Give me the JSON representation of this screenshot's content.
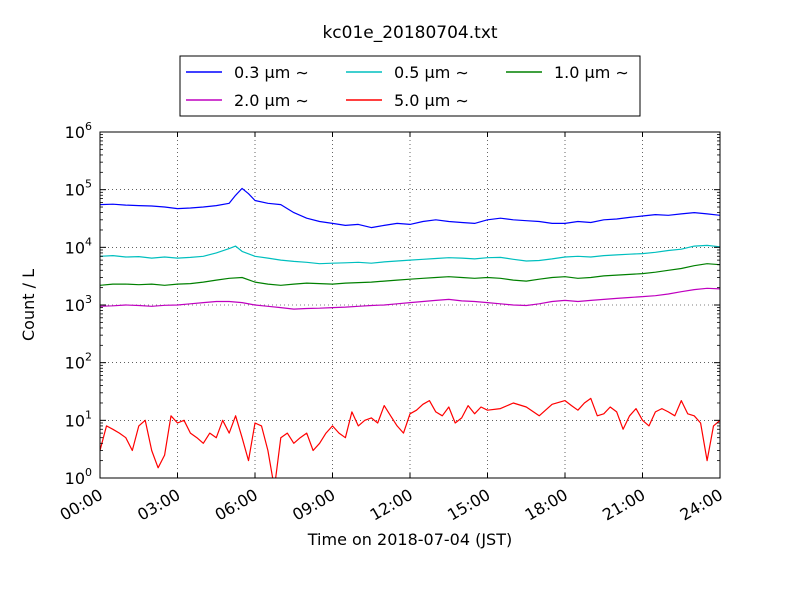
{
  "chart_data": {
    "type": "line",
    "title": "kc01e_20180704.txt",
    "xlabel": "Time on 2018-07-04 (JST)",
    "ylabel": "Count / L",
    "yscale": "log",
    "ylim": [
      1,
      1000000
    ],
    "xlim": [
      "00:00",
      "24:00"
    ],
    "grid": true,
    "legend_position": "top-center, above plot",
    "legend_symbol": "∼",
    "x_ticks": [
      "00:00",
      "03:00",
      "06:00",
      "09:00",
      "12:00",
      "15:00",
      "18:00",
      "21:00",
      "24:00"
    ],
    "y_ticks": [
      {
        "value": 1,
        "base": "10",
        "exp": "0"
      },
      {
        "value": 10,
        "base": "10",
        "exp": "1"
      },
      {
        "value": 100,
        "base": "10",
        "exp": "2"
      },
      {
        "value": 1000,
        "base": "10",
        "exp": "3"
      },
      {
        "value": 10000,
        "base": "10",
        "exp": "4"
      },
      {
        "value": 100000,
        "base": "10",
        "exp": "5"
      },
      {
        "value": 1000000,
        "base": "10",
        "exp": "6"
      }
    ],
    "series": [
      {
        "name": "0.3 μm",
        "color": "#0000ff",
        "points": [
          [
            "00:00",
            55000
          ],
          [
            "00:30",
            56000
          ],
          [
            "01:00",
            54000
          ],
          [
            "01:30",
            53000
          ],
          [
            "02:00",
            52000
          ],
          [
            "02:30",
            50000
          ],
          [
            "03:00",
            47000
          ],
          [
            "03:30",
            48000
          ],
          [
            "04:00",
            50000
          ],
          [
            "04:30",
            53000
          ],
          [
            "05:00",
            58000
          ],
          [
            "05:15",
            80000
          ],
          [
            "05:30",
            105000
          ],
          [
            "05:45",
            85000
          ],
          [
            "06:00",
            65000
          ],
          [
            "06:30",
            58000
          ],
          [
            "07:00",
            55000
          ],
          [
            "07:30",
            40000
          ],
          [
            "08:00",
            32000
          ],
          [
            "08:30",
            28000
          ],
          [
            "09:00",
            26000
          ],
          [
            "09:30",
            24000
          ],
          [
            "10:00",
            25000
          ],
          [
            "10:30",
            22000
          ],
          [
            "11:00",
            24000
          ],
          [
            "11:30",
            26000
          ],
          [
            "12:00",
            25000
          ],
          [
            "12:30",
            28000
          ],
          [
            "13:00",
            30000
          ],
          [
            "13:30",
            28000
          ],
          [
            "14:00",
            27000
          ],
          [
            "14:30",
            26000
          ],
          [
            "15:00",
            30000
          ],
          [
            "15:30",
            32000
          ],
          [
            "16:00",
            30000
          ],
          [
            "16:30",
            29000
          ],
          [
            "17:00",
            28000
          ],
          [
            "17:30",
            26000
          ],
          [
            "18:00",
            26000
          ],
          [
            "18:30",
            28000
          ],
          [
            "19:00",
            27000
          ],
          [
            "19:30",
            30000
          ],
          [
            "20:00",
            31000
          ],
          [
            "20:30",
            33000
          ],
          [
            "21:00",
            35000
          ],
          [
            "21:30",
            37000
          ],
          [
            "22:00",
            36000
          ],
          [
            "22:30",
            38000
          ],
          [
            "23:00",
            40000
          ],
          [
            "23:30",
            38000
          ],
          [
            "24:00",
            36000
          ]
        ]
      },
      {
        "name": "0.5 μm",
        "color": "#00bfbf",
        "points": [
          [
            "00:00",
            7000
          ],
          [
            "00:30",
            7200
          ],
          [
            "01:00",
            6800
          ],
          [
            "01:30",
            6900
          ],
          [
            "02:00",
            6500
          ],
          [
            "02:30",
            6800
          ],
          [
            "03:00",
            6500
          ],
          [
            "03:30",
            6700
          ],
          [
            "04:00",
            7000
          ],
          [
            "04:30",
            8000
          ],
          [
            "05:00",
            9500
          ],
          [
            "05:15",
            10500
          ],
          [
            "05:30",
            8500
          ],
          [
            "06:00",
            7000
          ],
          [
            "06:30",
            6500
          ],
          [
            "07:00",
            6000
          ],
          [
            "07:30",
            5700
          ],
          [
            "08:00",
            5500
          ],
          [
            "08:30",
            5200
          ],
          [
            "09:00",
            5300
          ],
          [
            "09:30",
            5400
          ],
          [
            "10:00",
            5500
          ],
          [
            "10:30",
            5300
          ],
          [
            "11:00",
            5600
          ],
          [
            "11:30",
            5800
          ],
          [
            "12:00",
            6000
          ],
          [
            "12:30",
            6200
          ],
          [
            "13:00",
            6400
          ],
          [
            "13:30",
            6600
          ],
          [
            "14:00",
            6500
          ],
          [
            "14:30",
            6300
          ],
          [
            "15:00",
            6600
          ],
          [
            "15:30",
            6700
          ],
          [
            "16:00",
            6200
          ],
          [
            "16:30",
            5800
          ],
          [
            "17:00",
            5900
          ],
          [
            "17:30",
            6300
          ],
          [
            "18:00",
            6800
          ],
          [
            "18:30",
            7000
          ],
          [
            "19:00",
            6800
          ],
          [
            "19:30",
            7200
          ],
          [
            "20:00",
            7400
          ],
          [
            "20:30",
            7600
          ],
          [
            "21:00",
            7800
          ],
          [
            "21:30",
            8200
          ],
          [
            "22:00",
            8800
          ],
          [
            "22:30",
            9300
          ],
          [
            "23:00",
            10500
          ],
          [
            "23:30",
            10800
          ],
          [
            "24:00",
            10200
          ]
        ]
      },
      {
        "name": "1.0 μm",
        "color": "#008000",
        "points": [
          [
            "00:00",
            2200
          ],
          [
            "00:30",
            2300
          ],
          [
            "01:00",
            2300
          ],
          [
            "01:30",
            2250
          ],
          [
            "02:00",
            2300
          ],
          [
            "02:30",
            2200
          ],
          [
            "03:00",
            2300
          ],
          [
            "03:30",
            2350
          ],
          [
            "04:00",
            2500
          ],
          [
            "04:30",
            2700
          ],
          [
            "05:00",
            2900
          ],
          [
            "05:30",
            3000
          ],
          [
            "06:00",
            2500
          ],
          [
            "06:30",
            2300
          ],
          [
            "07:00",
            2200
          ],
          [
            "07:30",
            2300
          ],
          [
            "08:00",
            2400
          ],
          [
            "08:30",
            2350
          ],
          [
            "09:00",
            2300
          ],
          [
            "09:30",
            2400
          ],
          [
            "10:00",
            2450
          ],
          [
            "10:30",
            2500
          ],
          [
            "11:00",
            2600
          ],
          [
            "11:30",
            2700
          ],
          [
            "12:00",
            2800
          ],
          [
            "12:30",
            2900
          ],
          [
            "13:00",
            3000
          ],
          [
            "13:30",
            3100
          ],
          [
            "14:00",
            3000
          ],
          [
            "14:30",
            2900
          ],
          [
            "15:00",
            3000
          ],
          [
            "15:30",
            2900
          ],
          [
            "16:00",
            2700
          ],
          [
            "16:30",
            2600
          ],
          [
            "17:00",
            2800
          ],
          [
            "17:30",
            3000
          ],
          [
            "18:00",
            3100
          ],
          [
            "18:30",
            2900
          ],
          [
            "19:00",
            3000
          ],
          [
            "19:30",
            3200
          ],
          [
            "20:00",
            3300
          ],
          [
            "20:30",
            3400
          ],
          [
            "21:00",
            3500
          ],
          [
            "21:30",
            3700
          ],
          [
            "22:00",
            4000
          ],
          [
            "22:30",
            4300
          ],
          [
            "23:00",
            4800
          ],
          [
            "23:30",
            5200
          ],
          [
            "24:00",
            5000
          ]
        ]
      },
      {
        "name": "2.0 μm",
        "color": "#bf00bf",
        "points": [
          [
            "00:00",
            950
          ],
          [
            "00:30",
            970
          ],
          [
            "01:00",
            1000
          ],
          [
            "01:30",
            980
          ],
          [
            "02:00",
            950
          ],
          [
            "02:30",
            990
          ],
          [
            "03:00",
            1000
          ],
          [
            "03:30",
            1050
          ],
          [
            "04:00",
            1100
          ],
          [
            "04:30",
            1150
          ],
          [
            "05:00",
            1150
          ],
          [
            "05:30",
            1100
          ],
          [
            "06:00",
            1000
          ],
          [
            "06:30",
            950
          ],
          [
            "07:00",
            900
          ],
          [
            "07:30",
            850
          ],
          [
            "08:00",
            870
          ],
          [
            "08:30",
            880
          ],
          [
            "09:00",
            900
          ],
          [
            "09:30",
            920
          ],
          [
            "10:00",
            950
          ],
          [
            "10:30",
            980
          ],
          [
            "11:00",
            1000
          ],
          [
            "11:30",
            1050
          ],
          [
            "12:00",
            1100
          ],
          [
            "12:30",
            1150
          ],
          [
            "13:00",
            1200
          ],
          [
            "13:30",
            1250
          ],
          [
            "14:00",
            1180
          ],
          [
            "14:30",
            1150
          ],
          [
            "15:00",
            1100
          ],
          [
            "15:30",
            1050
          ],
          [
            "16:00",
            1000
          ],
          [
            "16:30",
            980
          ],
          [
            "17:00",
            1050
          ],
          [
            "17:30",
            1150
          ],
          [
            "18:00",
            1200
          ],
          [
            "18:30",
            1150
          ],
          [
            "19:00",
            1200
          ],
          [
            "19:30",
            1250
          ],
          [
            "20:00",
            1300
          ],
          [
            "20:30",
            1350
          ],
          [
            "21:00",
            1400
          ],
          [
            "21:30",
            1450
          ],
          [
            "22:00",
            1550
          ],
          [
            "22:30",
            1700
          ],
          [
            "23:00",
            1850
          ],
          [
            "23:30",
            1950
          ],
          [
            "24:00",
            1900
          ]
        ]
      },
      {
        "name": "5.0 μm",
        "color": "#ff0000",
        "points": [
          [
            "00:00",
            3
          ],
          [
            "00:15",
            8
          ],
          [
            "00:30",
            7
          ],
          [
            "00:45",
            6
          ],
          [
            "01:00",
            5
          ],
          [
            "01:15",
            3
          ],
          [
            "01:30",
            8
          ],
          [
            "01:45",
            10
          ],
          [
            "02:00",
            3
          ],
          [
            "02:15",
            1.5
          ],
          [
            "02:30",
            2.5
          ],
          [
            "02:45",
            12
          ],
          [
            "03:00",
            9
          ],
          [
            "03:15",
            10
          ],
          [
            "03:30",
            6
          ],
          [
            "03:45",
            5
          ],
          [
            "04:00",
            4
          ],
          [
            "04:15",
            6
          ],
          [
            "04:30",
            5
          ],
          [
            "04:45",
            10
          ],
          [
            "05:00",
            6
          ],
          [
            "05:15",
            12
          ],
          [
            "05:30",
            5
          ],
          [
            "05:45",
            2
          ],
          [
            "06:00",
            9
          ],
          [
            "06:15",
            8
          ],
          [
            "06:30",
            3
          ],
          [
            "06:45",
            0.6
          ],
          [
            "07:00",
            5
          ],
          [
            "07:15",
            6
          ],
          [
            "07:30",
            4
          ],
          [
            "07:45",
            5
          ],
          [
            "08:00",
            6
          ],
          [
            "08:15",
            3
          ],
          [
            "08:30",
            4
          ],
          [
            "08:45",
            6
          ],
          [
            "09:00",
            8
          ],
          [
            "09:15",
            6
          ],
          [
            "09:30",
            5
          ],
          [
            "09:45",
            14
          ],
          [
            "10:00",
            8
          ],
          [
            "10:15",
            10
          ],
          [
            "10:30",
            11
          ],
          [
            "10:45",
            9
          ],
          [
            "11:00",
            18
          ],
          [
            "11:15",
            12
          ],
          [
            "11:30",
            8
          ],
          [
            "11:45",
            6
          ],
          [
            "12:00",
            13
          ],
          [
            "12:15",
            15
          ],
          [
            "12:30",
            19
          ],
          [
            "12:45",
            22
          ],
          [
            "13:00",
            14
          ],
          [
            "13:15",
            12
          ],
          [
            "13:30",
            17
          ],
          [
            "13:45",
            9
          ],
          [
            "14:00",
            11
          ],
          [
            "14:15",
            18
          ],
          [
            "14:30",
            13
          ],
          [
            "14:45",
            17
          ],
          [
            "15:00",
            15
          ],
          [
            "15:30",
            16
          ],
          [
            "16:00",
            20
          ],
          [
            "16:30",
            17
          ],
          [
            "17:00",
            12
          ],
          [
            "17:30",
            19
          ],
          [
            "18:00",
            22
          ],
          [
            "18:15",
            18
          ],
          [
            "18:30",
            15
          ],
          [
            "18:45",
            20
          ],
          [
            "19:00",
            24
          ],
          [
            "19:15",
            12
          ],
          [
            "19:30",
            13
          ],
          [
            "19:45",
            17
          ],
          [
            "20:00",
            14
          ],
          [
            "20:15",
            7
          ],
          [
            "20:30",
            12
          ],
          [
            "20:45",
            16
          ],
          [
            "21:00",
            10
          ],
          [
            "21:15",
            8
          ],
          [
            "21:30",
            14
          ],
          [
            "21:45",
            16
          ],
          [
            "22:00",
            14
          ],
          [
            "22:15",
            12
          ],
          [
            "22:30",
            22
          ],
          [
            "22:45",
            13
          ],
          [
            "23:00",
            12
          ],
          [
            "23:15",
            9
          ],
          [
            "23:30",
            2
          ],
          [
            "23:45",
            8
          ],
          [
            "24:00",
            10
          ]
        ]
      }
    ]
  }
}
